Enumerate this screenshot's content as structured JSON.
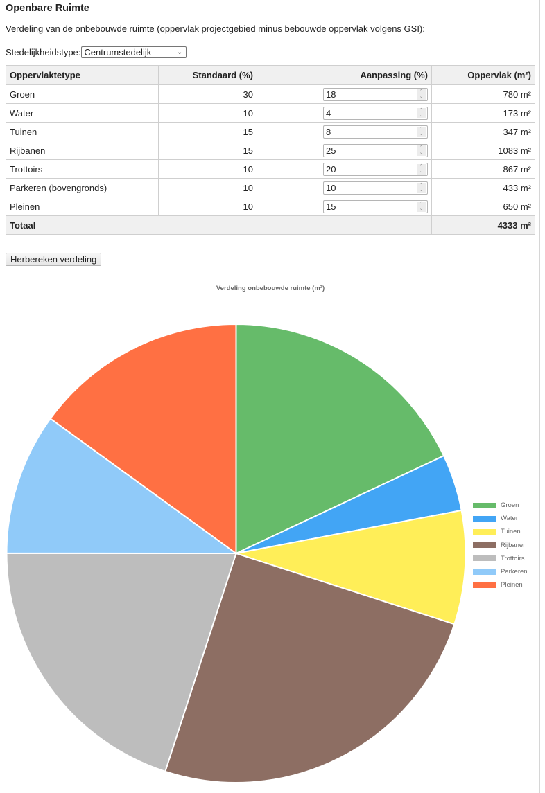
{
  "page": {
    "title": "Openbare Ruimte",
    "intro": "Verdeling van de onbebouwde ruimte (oppervlak projectgebied minus bebouwde oppervlak volgens GSI):"
  },
  "type_select": {
    "label": "Stedelijkheidstype:",
    "value": "Centrumstedelijk"
  },
  "table": {
    "headers": [
      "Oppervlaktetype",
      "Standaard (%)",
      "Aanpassing (%)",
      "Oppervlak (m²)"
    ],
    "rows": [
      {
        "type": "Groen",
        "standard": "30",
        "adjust": "18",
        "area": "780 m²"
      },
      {
        "type": "Water",
        "standard": "10",
        "adjust": "4",
        "area": "173 m²"
      },
      {
        "type": "Tuinen",
        "standard": "15",
        "adjust": "8",
        "area": "347 m²"
      },
      {
        "type": "Rijbanen",
        "standard": "15",
        "adjust": "25",
        "area": "1083 m²"
      },
      {
        "type": "Trottoirs",
        "standard": "10",
        "adjust": "20",
        "area": "867 m²"
      },
      {
        "type": "Parkeren (bovengronds)",
        "standard": "10",
        "adjust": "10",
        "area": "433 m²"
      },
      {
        "type": "Pleinen",
        "standard": "10",
        "adjust": "15",
        "area": "650 m²"
      }
    ],
    "total_label": "Totaal",
    "total_value": "4333 m²"
  },
  "recalc_button": "Herbereken verdeling",
  "chart_data": {
    "type": "pie",
    "title": "Verdeling onbebouwde ruimte (m²)",
    "categories": [
      "Groen",
      "Water",
      "Tuinen",
      "Rijbanen",
      "Trottoirs",
      "Parkeren",
      "Pleinen"
    ],
    "values": [
      780,
      173,
      347,
      1083,
      867,
      433,
      650
    ],
    "colors": [
      "#66bb6a",
      "#42a5f5",
      "#ffee58",
      "#8d6e63",
      "#bdbdbd",
      "#90caf9",
      "#ff7043"
    ],
    "legend_position": "right",
    "start_angle": "12 o'clock, clockwise"
  }
}
